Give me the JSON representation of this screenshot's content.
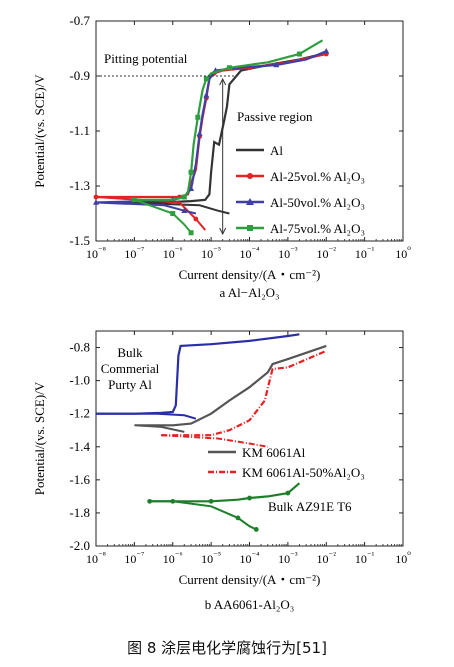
{
  "figure_caption": "图 8   涂层电化学腐蚀行为[51]",
  "chart_data": [
    {
      "type": "line",
      "panel_label": "a  Al−Al₂O₃",
      "xlabel": "Current density/(A・cm⁻²)",
      "ylabel": "Potential/(vs. SCE)/V",
      "x_scale": "log",
      "xlim": [
        1e-08,
        1
      ],
      "ylim": [
        -1.5,
        -0.7
      ],
      "x_ticks": [
        "10⁻⁸",
        "10⁻⁷",
        "10⁻⁶",
        "10⁻⁵",
        "10⁻⁴",
        "10⁻³",
        "10⁻²",
        "10⁻¹",
        "10⁰"
      ],
      "y_ticks": [
        "-1.5",
        "-1.3",
        "-1.1",
        "-0.9",
        "-0.7"
      ],
      "annotations": [
        {
          "text": "Pitting potential",
          "at_y": -0.9
        },
        {
          "text": "Passive region"
        }
      ],
      "legend_placement": "lower-right",
      "series": [
        {
          "name": "Al",
          "color": "#333333",
          "marker": "none",
          "points": [
            [
              5e-08,
              -1.36
            ],
            [
              5e-07,
              -1.36
            ],
            [
              3e-06,
              -1.355
            ],
            [
              7e-06,
              -1.35
            ],
            [
              9e-06,
              -1.33
            ],
            [
              1e-05,
              -1.25
            ],
            [
              1.2e-05,
              -1.14
            ],
            [
              1.6e-05,
              -1.15
            ],
            [
              2.2e-05,
              -1.06
            ],
            [
              2.6e-05,
              -1.01
            ],
            [
              3e-05,
              -0.93
            ],
            [
              6e-05,
              -0.88
            ],
            [
              0.0003,
              -0.86
            ],
            [
              0.002,
              -0.84
            ],
            [
              0.008,
              -0.82
            ]
          ],
          "cathodic": [
            [
              5e-06,
              -1.37
            ],
            [
              1.5e-05,
              -1.39
            ],
            [
              3e-05,
              -1.4
            ]
          ]
        },
        {
          "name": "Al-25vol.% Al₂O₃",
          "color": "#e52222",
          "marker": "circle",
          "points": [
            [
              1e-08,
              -1.34
            ],
            [
              3e-07,
              -1.34
            ],
            [
              1.5e-06,
              -1.34
            ],
            [
              2.5e-06,
              -1.33
            ],
            [
              3e-06,
              -1.29
            ],
            [
              4e-06,
              -1.24
            ],
            [
              5e-06,
              -1.12
            ],
            [
              6e-06,
              -1.05
            ],
            [
              7.5e-06,
              -0.98
            ],
            [
              9e-06,
              -0.91
            ],
            [
              1.2e-05,
              -0.89
            ],
            [
              2e-05,
              -0.88
            ],
            [
              0.0001,
              -0.87
            ],
            [
              0.001,
              -0.85
            ],
            [
              0.01,
              -0.82
            ]
          ],
          "cathodic": [
            [
              1.5e-06,
              -1.36
            ],
            [
              4e-06,
              -1.42
            ],
            [
              7e-06,
              -1.46
            ]
          ]
        },
        {
          "name": "Al-50vol.% Al₂O₃",
          "color": "#3f3fa6",
          "marker": "triangle",
          "points": [
            [
              1e-08,
              -1.36
            ],
            [
              2e-07,
              -1.355
            ],
            [
              1e-06,
              -1.35
            ],
            [
              2e-06,
              -1.34
            ],
            [
              3e-06,
              -1.31
            ],
            [
              4e-06,
              -1.22
            ],
            [
              5e-06,
              -1.11
            ],
            [
              6e-06,
              -1.04
            ],
            [
              7.5e-06,
              -0.97
            ],
            [
              9e-06,
              -0.91
            ],
            [
              1.3e-05,
              -0.88
            ],
            [
              5e-05,
              -0.87
            ],
            [
              0.0005,
              -0.86
            ],
            [
              0.003,
              -0.84
            ],
            [
              0.01,
              -0.81
            ]
          ],
          "cathodic": [
            [
              6e-07,
              -1.37
            ],
            [
              2e-06,
              -1.39
            ],
            [
              4e-06,
              -1.4
            ]
          ]
        },
        {
          "name": "Al-75vol.% Al₂O₃",
          "color": "#2e9e3e",
          "marker": "square",
          "points": [
            [
              1e-07,
              -1.35
            ],
            [
              1e-06,
              -1.35
            ],
            [
              2e-06,
              -1.34
            ],
            [
              2.5e-06,
              -1.32
            ],
            [
              3e-06,
              -1.25
            ],
            [
              3.5e-06,
              -1.15
            ],
            [
              4.5e-06,
              -1.05
            ],
            [
              6e-06,
              -0.95
            ],
            [
              7.5e-06,
              -0.91
            ],
            [
              1e-05,
              -0.89
            ],
            [
              3e-05,
              -0.87
            ],
            [
              0.0003,
              -0.85
            ],
            [
              0.002,
              -0.82
            ],
            [
              0.008,
              -0.77
            ]
          ],
          "cathodic": [
            [
              1e-06,
              -1.4
            ],
            [
              2e-06,
              -1.44
            ],
            [
              3e-06,
              -1.47
            ]
          ]
        }
      ]
    },
    {
      "type": "line",
      "panel_label": "b  AA6061-Al₂O₃",
      "xlabel": "Current density/(A・cm⁻²)",
      "ylabel": "Potential/(vs. SCE)/V",
      "x_scale": "log",
      "xlim": [
        1e-08,
        1
      ],
      "ylim": [
        -2.0,
        -0.7
      ],
      "x_ticks": [
        "10⁻⁸",
        "10⁻⁷",
        "10⁻⁶",
        "10⁻⁵",
        "10⁻⁴",
        "10⁻³",
        "10⁻²",
        "10⁻¹",
        "10⁰"
      ],
      "y_ticks": [
        "-0.8",
        "-1.0",
        "-1.2",
        "-1.4",
        "-1.6",
        "-1.8",
        "-2.0"
      ],
      "annotations": [
        {
          "text": "Bulk\nCommerial\nPurty Al"
        },
        {
          "text": "Bulk AZ91E T6"
        }
      ],
      "legend_placement": "center-right",
      "series": [
        {
          "name": "Bulk Commerial Purty Al",
          "color": "#2a2fa8",
          "marker": "none",
          "points": [
            [
              1e-08,
              -1.2
            ],
            [
              1e-07,
              -1.2
            ],
            [
              5e-07,
              -1.195
            ],
            [
              1e-06,
              -1.19
            ],
            [
              1.2e-06,
              -1.15
            ],
            [
              1.3e-06,
              -1.0
            ],
            [
              1.4e-06,
              -0.85
            ],
            [
              1.6e-06,
              -0.79
            ],
            [
              1e-05,
              -0.78
            ],
            [
              0.0001,
              -0.76
            ],
            [
              0.001,
              -0.73
            ],
            [
              0.002,
              -0.72
            ]
          ],
          "cathodic": [
            [
              4e-07,
              -1.2
            ],
            [
              2e-06,
              -1.21
            ],
            [
              4e-06,
              -1.23
            ]
          ]
        },
        {
          "name": "KM 6061Al",
          "color": "#555555",
          "marker": "none",
          "points": [
            [
              2e-07,
              -1.27
            ],
            [
              1e-06,
              -1.27
            ],
            [
              3e-06,
              -1.26
            ],
            [
              1e-05,
              -1.2
            ],
            [
              3e-05,
              -1.12
            ],
            [
              0.0001,
              -1.04
            ],
            [
              0.0003,
              -0.95
            ],
            [
              0.0004,
              -0.9
            ],
            [
              0.001,
              -0.87
            ],
            [
              0.01,
              -0.79
            ]
          ],
          "cathodic": [
            [
              1e-07,
              -1.27
            ],
            [
              5e-07,
              -1.28
            ],
            [
              2e-06,
              -1.31
            ]
          ]
        },
        {
          "name": "KM 6061Al-50%Al₂O₃",
          "color": "#e52222",
          "marker": "dash-dot",
          "points": [
            [
              5e-07,
              -1.33
            ],
            [
              3e-06,
              -1.33
            ],
            [
              1e-05,
              -1.33
            ],
            [
              3e-05,
              -1.3
            ],
            [
              0.0001,
              -1.24
            ],
            [
              0.00025,
              -1.12
            ],
            [
              0.00035,
              -0.98
            ],
            [
              0.0004,
              -0.93
            ],
            [
              0.001,
              -0.92
            ],
            [
              0.01,
              -0.82
            ]
          ],
          "cathodic": [
            [
              1.5e-05,
              -1.35
            ],
            [
              0.0001,
              -1.38
            ],
            [
              0.0003,
              -1.4
            ]
          ]
        },
        {
          "name": "Bulk AZ91E T6",
          "color": "#1e7f2a",
          "marker": "circle",
          "points": [
            [
              2.5e-07,
              -1.73
            ],
            [
              1e-06,
              -1.73
            ],
            [
              1e-05,
              -1.73
            ],
            [
              5e-05,
              -1.72
            ],
            [
              0.0001,
              -1.71
            ],
            [
              0.0003,
              -1.7
            ],
            [
              0.001,
              -1.68
            ],
            [
              0.002,
              -1.62
            ]
          ],
          "cathodic": [
            [
              1e-06,
              -1.73
            ],
            [
              1e-05,
              -1.76
            ],
            [
              5e-05,
              -1.83
            ],
            [
              0.0001,
              -1.88
            ],
            [
              0.00015,
              -1.9
            ]
          ]
        }
      ]
    }
  ]
}
